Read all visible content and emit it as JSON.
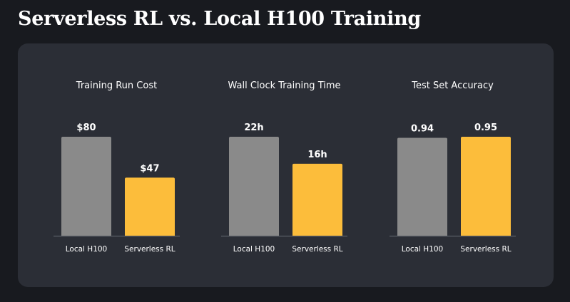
{
  "title": "Serverless RL vs. Local H100 Training",
  "colors": {
    "baseline": "#8a8a8a",
    "highlight": "#fcbd3b",
    "axis": "#5a5e66",
    "text": "#ffffff"
  },
  "chart_data": [
    {
      "type": "bar",
      "title": "Training Run Cost",
      "categories": [
        "Local H100",
        "Serverless RL"
      ],
      "values": [
        80,
        47
      ],
      "labels": [
        "$80",
        "$47"
      ],
      "ylim": [
        0,
        80
      ]
    },
    {
      "type": "bar",
      "title": "Wall Clock Training Time",
      "categories": [
        "Local H100",
        "Serverless RL"
      ],
      "values": [
        22,
        16
      ],
      "labels": [
        "22h",
        "16h"
      ],
      "ylim": [
        0,
        22
      ]
    },
    {
      "type": "bar",
      "title": "Test Set Accuracy",
      "categories": [
        "Local H100",
        "Serverless RL"
      ],
      "values": [
        0.94,
        0.95
      ],
      "labels": [
        "0.94",
        "0.95"
      ],
      "ylim": [
        0,
        0.95
      ]
    }
  ]
}
